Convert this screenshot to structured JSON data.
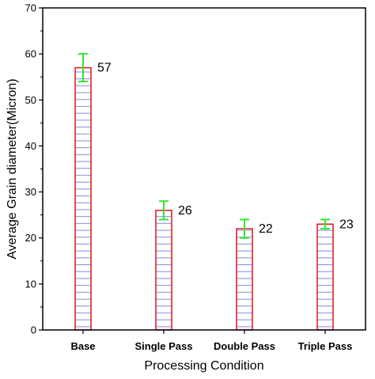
{
  "chart_data": {
    "type": "bar",
    "title": "",
    "xlabel": "Processing Condition",
    "ylabel": "Average Grain diameter(Micron)",
    "categories": [
      "Base",
      "Single Pass",
      "Double Pass",
      "Triple Pass"
    ],
    "values": [
      57,
      26,
      22,
      23
    ],
    "errors": [
      3,
      2,
      2,
      1
    ],
    "value_labels": [
      "57",
      "26",
      "22",
      "23"
    ],
    "ylim": [
      0,
      70
    ],
    "yticks": [
      0,
      10,
      20,
      30,
      40,
      50,
      60,
      70
    ],
    "grid": false,
    "legend": "none",
    "colors": {
      "bar_edge": "#e0141e",
      "bar_hatch": "#7b7bdc",
      "error_bar": "#33e633",
      "axis": "#000000"
    }
  }
}
